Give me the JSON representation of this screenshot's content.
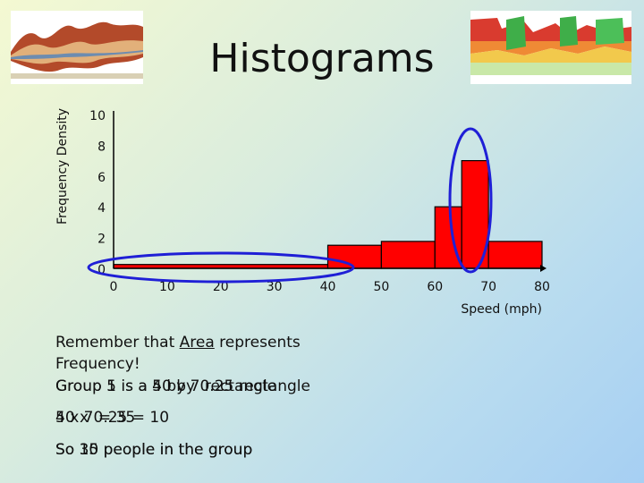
{
  "slide": {
    "title": "Histograms",
    "images": {
      "left_icon": "streamgraph-thumbnail",
      "right_icon": "stacked-area-thumbnail"
    }
  },
  "chart_data": {
    "type": "bar",
    "title": "",
    "xlabel": "Speed (mph)",
    "ylabel": "Frequency Density",
    "xlim": [
      0,
      80
    ],
    "ylim": [
      0,
      10
    ],
    "x_ticks": [
      "0",
      "10",
      "20",
      "30",
      "40",
      "50",
      "60",
      "70",
      "80"
    ],
    "y_ticks": [
      "0",
      "2",
      "4",
      "6",
      "8",
      "10"
    ],
    "bins": [
      {
        "from": 0,
        "to": 40,
        "value": 0.25
      },
      {
        "from": 40,
        "to": 50,
        "value": 1.5
      },
      {
        "from": 50,
        "to": 60,
        "value": 1.75
      },
      {
        "from": 60,
        "to": 65,
        "value": 4
      },
      {
        "from": 65,
        "to": 70,
        "value": 7
      },
      {
        "from": 70,
        "to": 80,
        "value": 1.75
      }
    ],
    "bar_color": "#ff0000",
    "highlight_color": "#1f1fd6"
  },
  "notes": {
    "line1a": "Remember that ",
    "line1_emph": "Area",
    "line1b": " represents",
    "line2": "Frequency!",
    "group_overlay": [
      "Group 1 is a 40 by 0.25 rectangle",
      "Group 5 is a 5 by 7 rectangle"
    ],
    "calc_overlay": [
      "40 x 0.25 = 10",
      "5 x 7 = 35"
    ],
    "conclusion_overlay": [
      "So 10 people in the group",
      "So 35 people in the group"
    ]
  }
}
